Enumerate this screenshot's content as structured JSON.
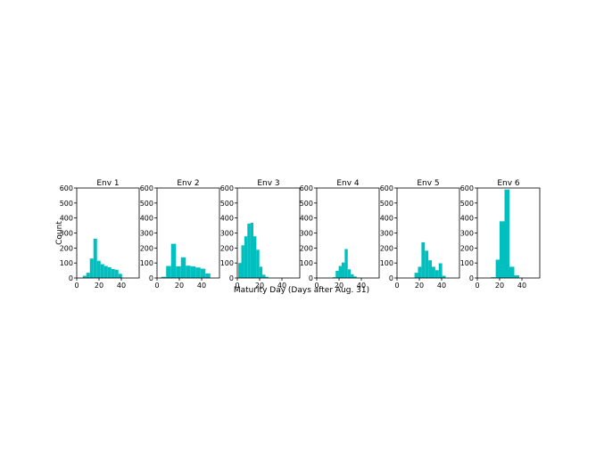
{
  "figure": {
    "ylabel": "Count",
    "xlabel": "Maturity Day (Days after Aug. 31)"
  },
  "style": {
    "bar_color": "#00bfbf",
    "axis_color": "#000000"
  },
  "chart_data": [
    {
      "type": "bar",
      "title": "Env 1",
      "bin_edges": [
        5.4,
        8.6,
        11.8,
        15.0,
        18.2,
        21.4,
        24.6,
        27.8,
        31.0,
        34.2,
        37.4,
        40.6
      ],
      "values": [
        15,
        35,
        130,
        262,
        115,
        92,
        80,
        72,
        60,
        55,
        28
      ],
      "xlim": [
        0,
        56
      ],
      "ylim": [
        0,
        600
      ],
      "xticks": [
        0,
        20,
        40
      ],
      "yticks": [
        0,
        100,
        200,
        300,
        400,
        500,
        600
      ]
    },
    {
      "type": "bar",
      "title": "Env 2",
      "bin_edges": [
        3.8,
        8.2,
        12.6,
        17.0,
        21.4,
        25.8,
        30.2,
        34.6,
        39.0,
        43.4,
        47.8,
        52.2
      ],
      "values": [
        8,
        80,
        228,
        78,
        138,
        82,
        78,
        70,
        62,
        30,
        0
      ],
      "xlim": [
        0,
        56
      ],
      "ylim": [
        0,
        600
      ],
      "xticks": [
        0,
        20,
        40
      ],
      "yticks": [
        0,
        100,
        200,
        300,
        400,
        500,
        600
      ]
    },
    {
      "type": "bar",
      "title": "Env 3",
      "bin_edges": [
        0.9,
        3.6,
        6.3,
        9.0,
        11.7,
        14.4,
        17.1,
        19.8,
        22.5,
        25.2,
        27.9,
        30.6
      ],
      "values": [
        100,
        218,
        278,
        362,
        368,
        278,
        188,
        75,
        22,
        8,
        0
      ],
      "xlim": [
        0,
        56
      ],
      "ylim": [
        0,
        600
      ],
      "xticks": [
        0,
        20,
        40
      ],
      "yticks": [
        0,
        100,
        200,
        300,
        400,
        500,
        600
      ]
    },
    {
      "type": "bar",
      "title": "Env 4",
      "bin_edges": [
        14.3,
        17.0,
        19.7,
        22.4,
        25.1,
        27.8,
        30.5,
        33.2,
        35.9,
        38.6,
        41.3,
        44.0
      ],
      "values": [
        5,
        48,
        80,
        103,
        193,
        58,
        25,
        10,
        3,
        0,
        0
      ],
      "xlim": [
        0,
        56
      ],
      "ylim": [
        0,
        600
      ],
      "xticks": [
        0,
        20,
        40
      ],
      "yticks": [
        0,
        100,
        200,
        300,
        400,
        500,
        600
      ]
    },
    {
      "type": "bar",
      "title": "Env 5",
      "bin_edges": [
        15.7,
        18.8,
        21.9,
        25.0,
        28.1,
        31.2,
        34.3,
        37.4,
        40.5,
        43.6,
        46.7,
        49.8
      ],
      "values": [
        35,
        75,
        238,
        182,
        118,
        75,
        52,
        98,
        15,
        0,
        0
      ],
      "xlim": [
        0,
        56
      ],
      "ylim": [
        0,
        600
      ],
      "xticks": [
        0,
        20,
        40
      ],
      "yticks": [
        0,
        100,
        200,
        300,
        400,
        500,
        600
      ]
    },
    {
      "type": "bar",
      "title": "Env 6",
      "bin_edges": [
        12.0,
        16.5,
        20.0,
        24.4,
        28.8,
        33.2,
        37.6,
        42.0
      ],
      "values": [
        5,
        122,
        378,
        590,
        75,
        18,
        2
      ],
      "xlim": [
        0,
        56
      ],
      "ylim": [
        0,
        600
      ],
      "xticks": [
        0,
        20,
        40
      ],
      "yticks": [
        0,
        100,
        200,
        300,
        400,
        500,
        600
      ]
    }
  ]
}
